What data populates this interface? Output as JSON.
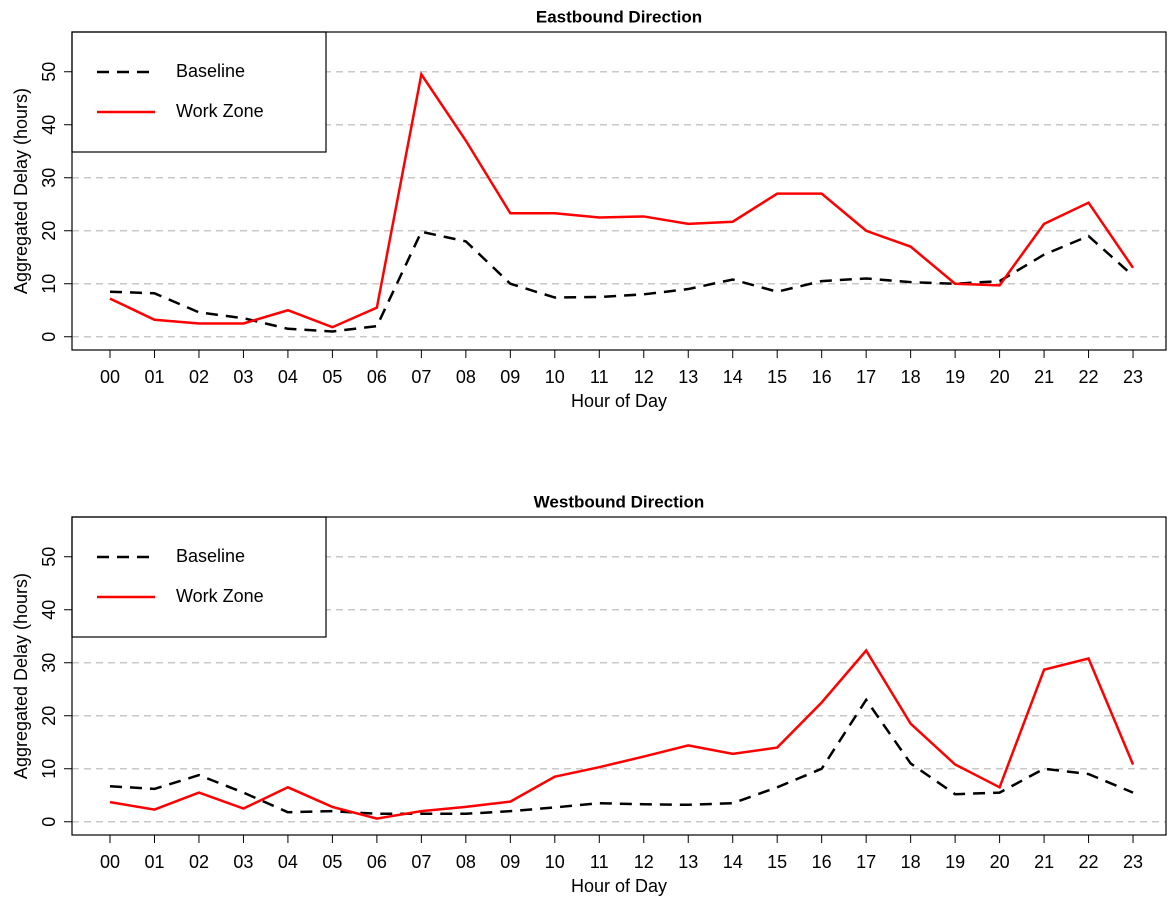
{
  "chart_data": [
    {
      "type": "line",
      "title": "Eastbound Direction",
      "x_label": "Hour of Day",
      "y_label": "Aggregated Delay (hours)",
      "categories": [
        "00",
        "01",
        "02",
        "03",
        "04",
        "05",
        "06",
        "07",
        "08",
        "09",
        "10",
        "11",
        "12",
        "13",
        "14",
        "15",
        "16",
        "17",
        "18",
        "19",
        "20",
        "21",
        "22",
        "23"
      ],
      "series": [
        {
          "name": "Baseline",
          "color": "#000000",
          "dash": true,
          "values": [
            8.5,
            8.2,
            4.6,
            3.5,
            1.5,
            1,
            2,
            19.8,
            18,
            10,
            7.4,
            7.5,
            8,
            9,
            10.8,
            8.5,
            10.5,
            11,
            10.3,
            10,
            10.5,
            15.5,
            19,
            11.5
          ]
        },
        {
          "name": "Work Zone",
          "color": "#ff0000",
          "dash": false,
          "values": [
            7.2,
            3.2,
            2.5,
            2.5,
            5,
            1.8,
            5.5,
            49.5,
            37,
            23.3,
            23.3,
            22.5,
            22.7,
            21.3,
            21.7,
            27,
            27,
            20,
            17,
            10,
            9.7,
            21.3,
            25.3,
            13
          ]
        }
      ],
      "ylim": [
        -2.5,
        57.5
      ],
      "yticks": [
        0,
        10,
        20,
        30,
        40,
        50
      ],
      "grid": true,
      "legend": "top-left"
    },
    {
      "type": "line",
      "title": "Westbound Direction",
      "x_label": "Hour of Day",
      "y_label": "Aggregated Delay (hours)",
      "categories": [
        "00",
        "01",
        "02",
        "03",
        "04",
        "05",
        "06",
        "07",
        "08",
        "09",
        "10",
        "11",
        "12",
        "13",
        "14",
        "15",
        "16",
        "17",
        "18",
        "19",
        "20",
        "21",
        "22",
        "23"
      ],
      "series": [
        {
          "name": "Baseline",
          "color": "#000000",
          "dash": true,
          "values": [
            6.7,
            6.2,
            8.8,
            5.5,
            1.8,
            2,
            1.5,
            1.5,
            1.5,
            2,
            2.7,
            3.5,
            3.3,
            3.2,
            3.5,
            6.5,
            10,
            23,
            11,
            5.2,
            5.5,
            10,
            9,
            5.5
          ]
        },
        {
          "name": "Work Zone",
          "color": "#ff0000",
          "dash": false,
          "values": [
            3.7,
            2.3,
            5.5,
            2.5,
            6.5,
            2.8,
            0.6,
            2,
            2.8,
            3.8,
            8.5,
            10.3,
            12.3,
            14.4,
            12.8,
            14,
            22.5,
            32.3,
            18.5,
            10.8,
            6.5,
            28.7,
            30.8,
            10.8
          ]
        }
      ],
      "ylim": [
        -2.5,
        57.5
      ],
      "yticks": [
        0,
        10,
        20,
        30,
        40,
        50
      ],
      "grid": true,
      "legend": "top-left"
    }
  ]
}
